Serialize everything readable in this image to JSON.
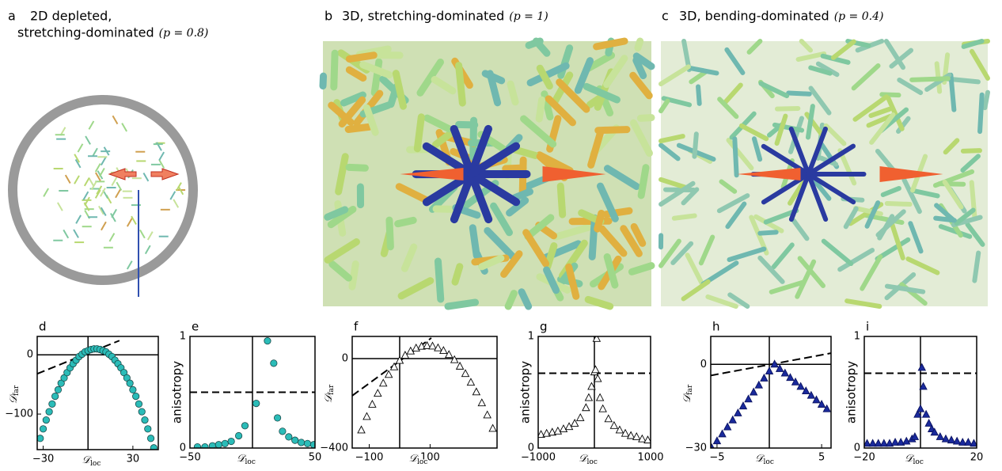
{
  "panels": [
    {
      "letter": "a",
      "title": [
        "2D depleted,",
        "stretching-dominated"
      ],
      "param": "(p = 0.8)"
    },
    {
      "letter": "b",
      "title": [
        "3D, stretching-dominated"
      ],
      "param": "(p = 1)"
    },
    {
      "letter": "c",
      "title": [
        "3D, bending-dominated"
      ],
      "param": "(p = 0.4)"
    }
  ],
  "chart_data": [
    {
      "type": "scatter",
      "letter": "d",
      "marker": "circle",
      "color": "#2bbcb8",
      "xlim": [
        -34,
        47
      ],
      "ylim": [
        -160,
        31
      ],
      "xticks": [
        {
          "value": -30,
          "label": "−30"
        },
        30
      ],
      "yticks": [
        {
          "value": -100,
          "label": "−100"
        },
        0
      ],
      "xlabel": {
        "main": "𝒟",
        "sub": "loc"
      },
      "ylabel": {
        "main": "𝒟",
        "sub": "far"
      },
      "vline": 0,
      "hline": 0,
      "fit": {
        "x": [
          -34,
          21
        ],
        "y": [
          -32,
          24
        ]
      },
      "x": [
        -32,
        -30,
        -28,
        -26,
        -24,
        -22,
        -20,
        -18,
        -16,
        -14,
        -12,
        -10,
        -8,
        -6,
        -4,
        -2,
        0,
        2,
        4,
        6,
        8,
        10,
        12,
        14,
        16,
        18,
        20,
        22,
        24,
        26,
        28,
        30,
        32,
        34,
        36,
        38,
        40,
        42,
        44
      ],
      "values": [
        -141,
        -125,
        -110,
        -96,
        -83,
        -70,
        -59,
        -48,
        -39,
        -30,
        -22,
        -15,
        -9,
        -3,
        1,
        5,
        7,
        9,
        10,
        10,
        9,
        7,
        5,
        1,
        -3,
        -9,
        -15,
        -22,
        -30,
        -39,
        -48,
        -59,
        -70,
        -83,
        -96,
        -110,
        -125,
        -141,
        -157
      ]
    },
    {
      "type": "scatter",
      "letter": "e",
      "marker": "circle",
      "color": "#2bbcb8",
      "xlim": [
        -50,
        50
      ],
      "ylim": [
        0,
        1
      ],
      "xticks": [
        {
          "value": -50,
          "label": "−50"
        },
        50
      ],
      "yticks": [
        0,
        1
      ],
      "xlabel": {
        "main": "𝒟",
        "sub": "loc"
      },
      "ylabel": "anisotropy",
      "vline": 0,
      "dashed_hline": 0.5,
      "x": [
        -44,
        -38,
        -32,
        -27,
        -22,
        -17,
        -11,
        -6,
        3,
        12,
        17,
        20,
        24,
        29,
        34,
        39,
        44,
        49
      ],
      "values": [
        0.01,
        0.01,
        0.02,
        0.03,
        0.04,
        0.06,
        0.11,
        0.2,
        0.4,
        0.96,
        0.76,
        0.27,
        0.15,
        0.1,
        0.07,
        0.05,
        0.04,
        0.03
      ]
    },
    {
      "type": "scatter",
      "letter": "f",
      "marker": "triangle",
      "color": "#ffffff",
      "xlim": [
        -156,
        320
      ],
      "ylim": [
        -400,
        99
      ],
      "xticks": [
        {
          "value": -100,
          "label": "−100"
        },
        100
      ],
      "yticks": [
        {
          "value": -400,
          "label": "−400"
        },
        0
      ],
      "xlabel": {
        "main": "𝒟",
        "sub": "loc"
      },
      "ylabel": {
        "main": "𝒟",
        "sub": "far"
      },
      "vline": 0,
      "hline": 0,
      "fit": {
        "x": [
          -156,
          104
        ],
        "y": [
          -166,
          92
        ]
      },
      "x": [
        -126,
        -108,
        -90,
        -72,
        -54,
        -36,
        -18,
        0,
        18,
        36,
        54,
        72,
        90,
        108,
        126,
        144,
        162,
        180,
        198,
        216,
        234,
        252,
        270,
        288,
        306
      ],
      "values": [
        -320,
        -260,
        -205,
        -156,
        -111,
        -72,
        -38,
        -9,
        14,
        33,
        46,
        54,
        57,
        55,
        47,
        35,
        17,
        -6,
        -35,
        -68,
        -107,
        -150,
        -199,
        -253,
        -313
      ]
    },
    {
      "type": "scatter",
      "letter": "g",
      "marker": "triangle",
      "color": "#ffffff",
      "xlim": [
        -1000,
        1000
      ],
      "ylim": [
        0,
        1
      ],
      "xticks": [
        {
          "value": -1000,
          "label": "−1000"
        },
        1000
      ],
      "yticks": [
        0,
        1
      ],
      "xlabel": {
        "main": "𝒟",
        "sub": "loc"
      },
      "ylabel": "anisotropy",
      "vline": 0,
      "dashed_hline": 0.67,
      "x": [
        -950,
        -850,
        -750,
        -650,
        -550,
        -450,
        -350,
        -250,
        -150,
        -100,
        -50,
        0,
        20,
        40,
        60,
        100,
        150,
        250,
        350,
        450,
        550,
        650,
        750,
        850,
        950
      ],
      "values": [
        0.12,
        0.13,
        0.14,
        0.15,
        0.17,
        0.19,
        0.22,
        0.27,
        0.36,
        0.45,
        0.55,
        0.68,
        0.7,
        0.98,
        0.62,
        0.45,
        0.35,
        0.26,
        0.2,
        0.16,
        0.13,
        0.11,
        0.1,
        0.08,
        0.07
      ]
    },
    {
      "type": "scatter",
      "letter": "h",
      "marker": "triangle",
      "color": "#1a2a9c",
      "xlim": [
        -5.6,
        5.9
      ],
      "ylim": [
        -30,
        10
      ],
      "xticks": [
        {
          "value": -5,
          "label": "−5"
        },
        5
      ],
      "yticks": [
        {
          "value": -30,
          "label": "−30"
        },
        0
      ],
      "xlabel": {
        "main": "𝒟",
        "sub": "loc"
      },
      "ylabel": {
        "main": "𝒟",
        "sub": "far"
      },
      "vline": 0,
      "hline": 0,
      "fit": {
        "x": [
          -5.6,
          5.9
        ],
        "y": [
          -4,
          4
        ]
      },
      "x": [
        -5.5,
        -5,
        -4.5,
        -4,
        -3.5,
        -3,
        -2.5,
        -2,
        -1.5,
        -1,
        -0.5,
        0,
        0.5,
        1,
        1.5,
        2,
        2.5,
        3,
        3.5,
        4,
        4.5,
        5,
        5.5
      ],
      "values": [
        -30,
        -27.5,
        -25,
        -22.5,
        -20,
        -17.5,
        -15,
        -12.5,
        -10,
        -7.5,
        -5,
        -2.5,
        0,
        -1.6,
        -3.2,
        -4.8,
        -6.4,
        -8,
        -9.6,
        -11.2,
        -12.8,
        -14.4,
        -16
      ]
    },
    {
      "type": "scatter",
      "letter": "i",
      "marker": "triangle",
      "color": "#1a2a9c",
      "xlim": [
        -20,
        20
      ],
      "ylim": [
        0,
        1
      ],
      "xticks": [
        {
          "value": -20,
          "label": "−20"
        },
        20
      ],
      "yticks": [
        0,
        1
      ],
      "xlabel": {
        "main": "𝒟",
        "sub": "loc"
      },
      "ylabel": "anisotropy",
      "vline": 0,
      "dashed_hline": 0.67,
      "x": [
        -19,
        -17,
        -15,
        -13,
        -11,
        -9,
        -7,
        -5,
        -3,
        -2,
        -1,
        0,
        0.5,
        1,
        2,
        3,
        4,
        5,
        7,
        9,
        11,
        13,
        15,
        17,
        19
      ],
      "values": [
        0.04,
        0.04,
        0.04,
        0.04,
        0.04,
        0.05,
        0.05,
        0.06,
        0.08,
        0.1,
        0.3,
        0.35,
        0.72,
        0.55,
        0.3,
        0.22,
        0.17,
        0.14,
        0.1,
        0.08,
        0.07,
        0.06,
        0.05,
        0.05,
        0.04
      ]
    }
  ]
}
